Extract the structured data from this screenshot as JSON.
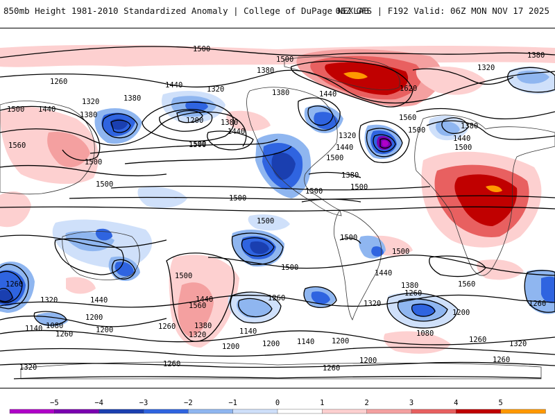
{
  "header": {
    "title": "850mb Height 1981-2010 Standardized Anomaly | College of DuPage NEXLAB",
    "run_info": "06Z GFS | F192 Valid: 06Z MON NOV 17 2025"
  },
  "map": {
    "contour_labels": [
      {
        "text": "1500"
      },
      {
        "text": "1500"
      },
      {
        "text": "1380"
      },
      {
        "text": "1380"
      },
      {
        "text": "1320"
      },
      {
        "text": "1260"
      },
      {
        "text": "1440"
      },
      {
        "text": "1320"
      },
      {
        "text": "1380"
      },
      {
        "text": "1320"
      },
      {
        "text": "1380"
      },
      {
        "text": "1500"
      },
      {
        "text": "1440"
      },
      {
        "text": "1200"
      },
      {
        "text": "1380"
      },
      {
        "text": "1440"
      },
      {
        "text": "1500"
      },
      {
        "text": "1380"
      },
      {
        "text": "1440"
      },
      {
        "text": "1620"
      },
      {
        "text": "1560"
      },
      {
        "text": "1500"
      },
      {
        "text": "1320"
      },
      {
        "text": "1440"
      },
      {
        "text": "1380"
      },
      {
        "text": "1440"
      },
      {
        "text": "1500"
      },
      {
        "text": "1500"
      },
      {
        "text": "1560"
      },
      {
        "text": "1500"
      },
      {
        "text": "1500"
      },
      {
        "text": "1500"
      },
      {
        "text": "1500"
      },
      {
        "text": "1500"
      },
      {
        "text": "1500"
      },
      {
        "text": "1500"
      },
      {
        "text": "1500"
      },
      {
        "text": "1500"
      },
      {
        "text": "1500"
      },
      {
        "text": "1440"
      },
      {
        "text": "1560"
      },
      {
        "text": "1260"
      },
      {
        "text": "1320"
      },
      {
        "text": "1440"
      },
      {
        "text": "1200"
      },
      {
        "text": "1080"
      },
      {
        "text": "1140"
      },
      {
        "text": "1200"
      },
      {
        "text": "1260"
      },
      {
        "text": "1560"
      },
      {
        "text": "1440"
      },
      {
        "text": "1380"
      },
      {
        "text": "1320"
      },
      {
        "text": "1260"
      },
      {
        "text": "1260"
      },
      {
        "text": "1140"
      },
      {
        "text": "1200"
      },
      {
        "text": "1200"
      },
      {
        "text": "1140"
      },
      {
        "text": "1200"
      },
      {
        "text": "1320"
      },
      {
        "text": "1260"
      },
      {
        "text": "1200"
      },
      {
        "text": "1380"
      },
      {
        "text": "1260"
      },
      {
        "text": "1200"
      },
      {
        "text": "1080"
      },
      {
        "text": "1260"
      },
      {
        "text": "1320"
      },
      {
        "text": "1260"
      },
      {
        "text": "1320"
      },
      {
        "text": "1260"
      },
      {
        "text": "1260"
      },
      {
        "text": "1380"
      },
      {
        "text": "1500"
      }
    ]
  },
  "legend": {
    "ticks": [
      "−5",
      "−4",
      "−3",
      "−2",
      "−1",
      "0",
      "1",
      "2",
      "3",
      "4",
      "5"
    ],
    "colors": [
      "#b000c8",
      "#7a00b0",
      "#1a3fb0",
      "#2f64e0",
      "#8fb6f0",
      "#cfe0fa",
      "#ffffff",
      "#fdd0d0",
      "#f4a0a0",
      "#e86060",
      "#c00000",
      "#ff9900"
    ]
  }
}
